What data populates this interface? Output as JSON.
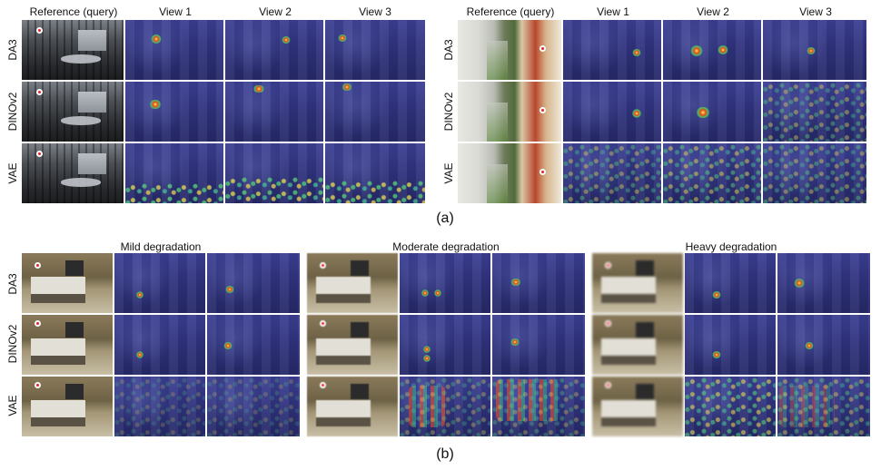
{
  "panel_a": {
    "left": {
      "headers": [
        "Reference (query)",
        "View 1",
        "View 2",
        "View 3"
      ],
      "rows": [
        "DA3",
        "DINOv2",
        "VAE"
      ]
    },
    "right": {
      "headers": [
        "Reference (query)",
        "View 1",
        "View 2",
        "View 3"
      ],
      "rows": [
        "DA3",
        "DINOv2",
        "VAE"
      ]
    },
    "caption": "(a)"
  },
  "panel_b": {
    "groups": [
      "Mild degradation",
      "Moderate degradation",
      "Heavy degradation"
    ],
    "rows": [
      "DA3",
      "DINOv2",
      "VAE"
    ],
    "caption": "(b)"
  },
  "colors": {
    "heatmap_base": "#2f327c",
    "query_marker": "#e8212a"
  }
}
